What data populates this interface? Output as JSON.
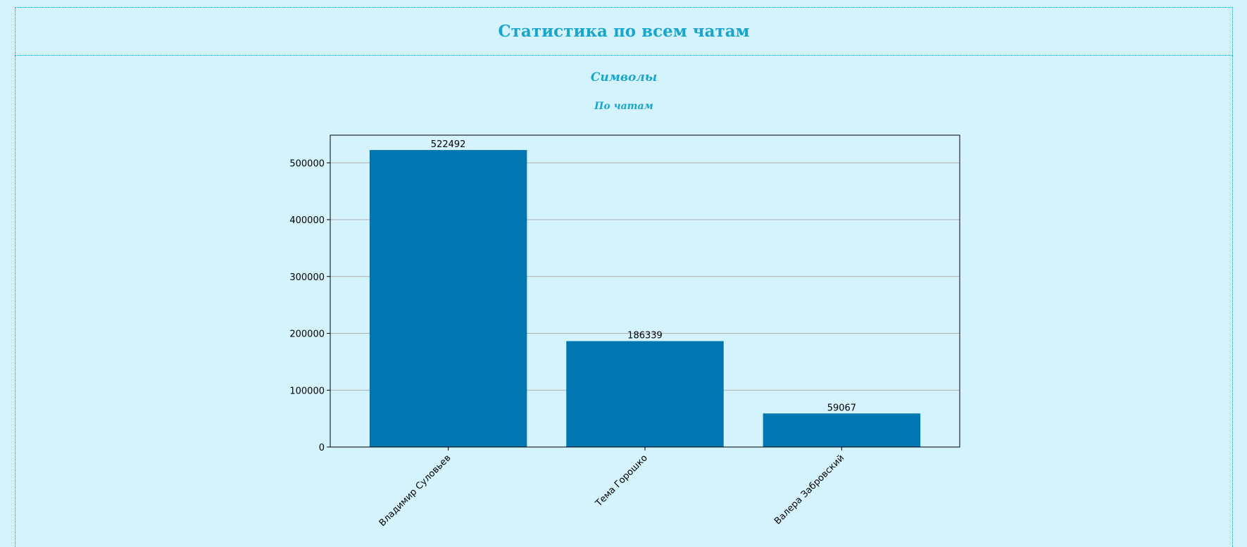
{
  "header": {
    "title": "Статистика по всем чатам"
  },
  "section": {
    "title": "Символы",
    "subtitle": "По чатам"
  },
  "colors": {
    "background": "#d4f3fc",
    "accent": "#1aa6cc",
    "bar": "#0077b0",
    "grid": "#b0b0b0"
  },
  "chart_data": {
    "type": "bar",
    "categories": [
      "Владимир Суловьев",
      "Тема Горошко",
      "Валера Забровский"
    ],
    "values": [
      522492,
      186339,
      59067
    ],
    "value_labels": [
      "522492",
      "186339",
      "59067"
    ],
    "y_ticks": [
      0,
      100000,
      200000,
      300000,
      400000,
      500000
    ],
    "y_tick_labels": [
      "0",
      "100000",
      "200000",
      "300000",
      "400000",
      "500000"
    ],
    "ylim": [
      0,
      548617
    ],
    "grid": "horizontal",
    "xlabel": "",
    "ylabel": ""
  }
}
